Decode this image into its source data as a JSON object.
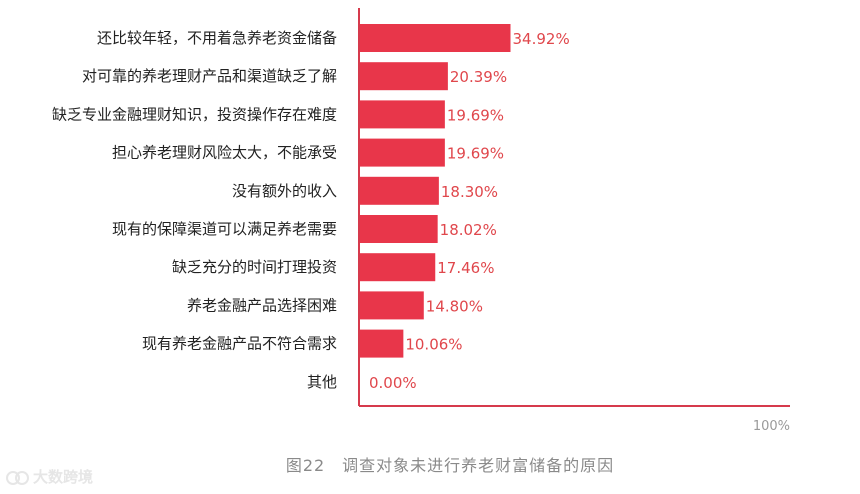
{
  "chart_data": {
    "type": "bar",
    "orientation": "horizontal",
    "categories": [
      "还比较年轻，不用着急养老资金储备",
      "对可靠的养老理财产品和渠道缺乏了解",
      "缺乏专业金融理财知识，投资操作存在难度",
      "担心养老理财风险太大，不能承受",
      "没有额外的收入",
      "现有的保障渠道可以满足养老需要",
      "缺乏充分的时间打理投资",
      "养老金融产品选择困难",
      "现有养老金融产品不符合需求",
      "其他"
    ],
    "values": [
      34.92,
      20.39,
      19.69,
      19.69,
      18.3,
      18.02,
      17.46,
      14.8,
      10.06,
      0.0
    ],
    "value_labels": [
      "34.92%",
      "20.39%",
      "19.69%",
      "19.69%",
      "18.30%",
      "18.02%",
      "17.46%",
      "14.80%",
      "10.06%",
      "0.00%"
    ],
    "xlim": [
      0,
      100
    ],
    "axis_max_label": "100%",
    "bar_color": "#e8364a",
    "value_label_color": "#e0474c",
    "axis_color": "#d63a4c"
  },
  "caption": "图22　调查对象未进行养老财富储备的原因",
  "watermark": "大数跨境"
}
